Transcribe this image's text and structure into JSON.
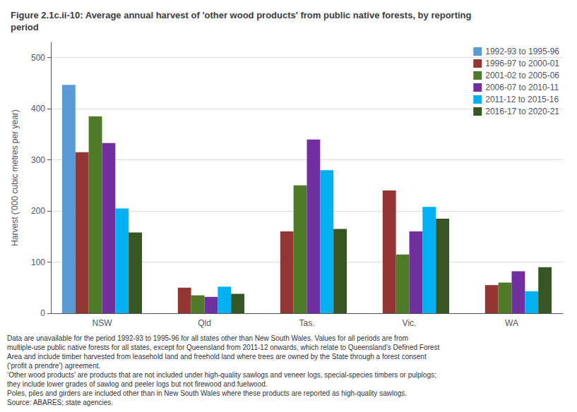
{
  "chart_data": {
    "type": "bar",
    "title": "Figure 2.1c.ii-10: Average annual harvest of 'other wood products' from public native forests, by reporting\nperiod",
    "ylabel": "Harvest ('000 cubic metres per year)",
    "categories": [
      "NSW",
      "Qld",
      "Tas.",
      "Vic.",
      "WA"
    ],
    "series": [
      {
        "name": "1992-93 to 1995-96",
        "color": "#5B9BD5",
        "values": [
          447,
          null,
          null,
          null,
          null
        ]
      },
      {
        "name": "1996-97 to 2000-01",
        "color": "#943634",
        "values": [
          315,
          50,
          160,
          240,
          55
        ]
      },
      {
        "name": "2001-02 to 2005-06",
        "color": "#4F7A28",
        "values": [
          385,
          35,
          250,
          115,
          60
        ]
      },
      {
        "name": "2006-07 to 2010-11",
        "color": "#7030A0",
        "values": [
          333,
          32,
          340,
          160,
          82
        ]
      },
      {
        "name": "2011-12 to 2015-16",
        "color": "#00B0F0",
        "values": [
          205,
          52,
          280,
          208,
          43
        ]
      },
      {
        "name": "2016-17 to 2020-21",
        "color": "#375623",
        "values": [
          158,
          38,
          165,
          185,
          90
        ]
      }
    ],
    "ylim": [
      0,
      530
    ],
    "yticks": [
      0,
      100,
      200,
      300,
      400,
      500
    ],
    "grid": true,
    "legend": "upper right",
    "annotations": [
      "Data are unavailable for the period 1992-93 to 1995-96 for all states other than New South Wales. Values for all periods are from",
      "multiple-use public native forests for all states, except for Queensland from 2011-12 onwards, which relate to Queensland’s Defined Forest",
      "Area and include timber harvested from leasehold land and freehold land where trees are owned by the State through a forest consent",
      "(‘profit a prendre’) agreement.",
      "‘Other wood products’ are products that are not included under high-quality sawlogs and veneer logs, special-species timbers or pulplogs;",
      "they include lower grades of sawlog and peeler logs but not firewood and fuelwood.",
      "Poles, piles and girders are included other than in New South Wales where these products are reported as high-quality sawlogs.",
      "Source: ABARES; state agencies."
    ]
  }
}
